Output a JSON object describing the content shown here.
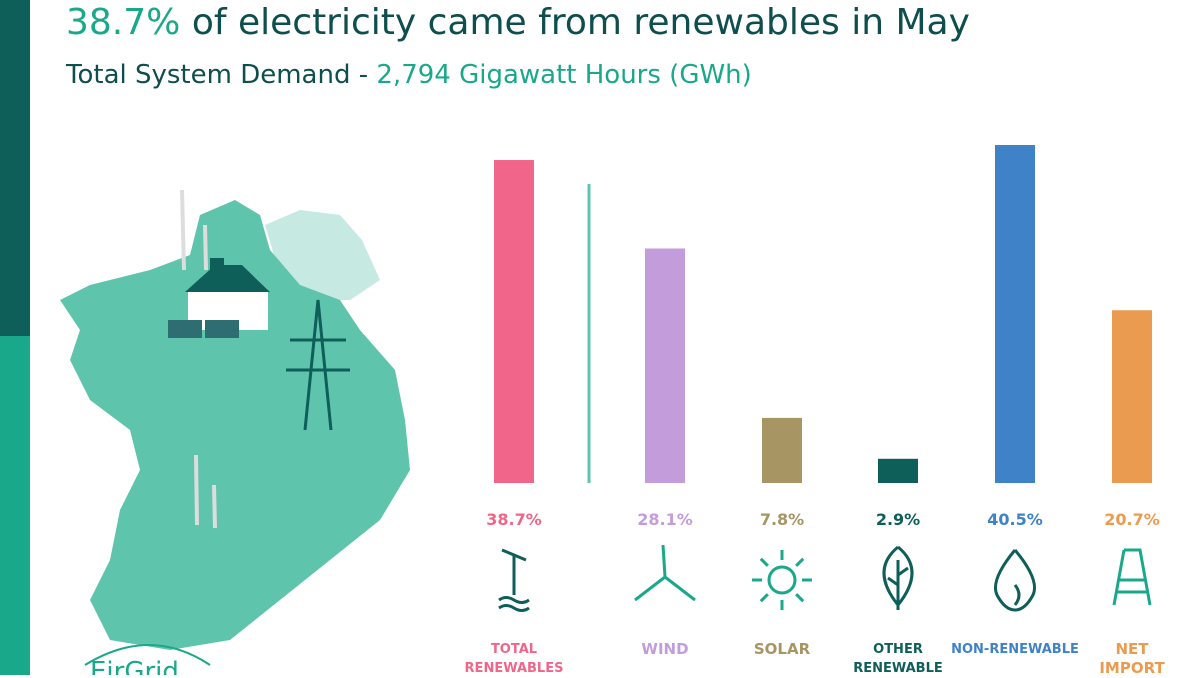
{
  "chart_data": {
    "type": "bar",
    "title_highlight": "38.7%",
    "title": "of electricity came from renewables in May",
    "subtitle": "Total System Demand -",
    "subtitle_highlight": "2,794 Gigawatt Hours (GWh)",
    "categories": [
      "TOTAL RENEWABLES",
      "WIND",
      "SOLAR",
      "OTHER RENEWABLE",
      "NON-RENEWABLE",
      "NET IMPORT"
    ],
    "values": [
      38.7,
      28.1,
      7.8,
      2.9,
      40.5,
      20.7
    ],
    "value_labels": [
      "38.7%",
      "28.1%",
      "7.8%",
      "2.9%",
      "40.5%",
      "20.7%"
    ],
    "colors": [
      "#f2658a",
      "#c39ddb",
      "#a89564",
      "#0e5e5a",
      "#3f82c8",
      "#eb9b50"
    ],
    "logo": "EirGrid"
  }
}
